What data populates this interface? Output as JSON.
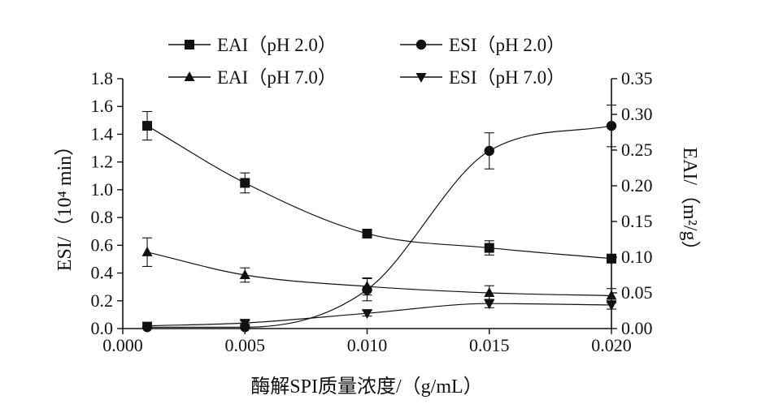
{
  "chart_data": {
    "type": "line",
    "x_label": "酶解SPI质量浓度/（g/mL）",
    "y_left_label": "ESI/（10⁴ min）",
    "y_right_label": "EAI/（m²/g）",
    "x_range": [
      0.0,
      0.02
    ],
    "y_left_range": [
      0.0,
      1.8
    ],
    "y_right_range": [
      0.0,
      0.35
    ],
    "x_ticks": [
      "0.000",
      "0.005",
      "0.010",
      "0.015",
      "0.020"
    ],
    "y_left_ticks": [
      "0.0",
      "0.2",
      "0.4",
      "0.6",
      "0.8",
      "1.0",
      "1.2",
      "1.4",
      "1.6",
      "1.8"
    ],
    "y_right_ticks": [
      "0.00",
      "0.05",
      "0.10",
      "0.15",
      "0.20",
      "0.25",
      "0.30",
      "0.35"
    ],
    "legend_position": "top",
    "series": [
      {
        "name": "EAI（pH 2.0）",
        "axis": "right",
        "marker": "square",
        "x": [
          0.001,
          0.005,
          0.01,
          0.015,
          0.02
        ],
        "y": [
          0.284,
          0.204,
          0.133,
          0.113,
          0.098
        ],
        "err": [
          0.02,
          0.014,
          0.004,
          0.01,
          0.006
        ]
      },
      {
        "name": "ESI（pH 2.0）",
        "axis": "left",
        "marker": "circle",
        "x": [
          0.001,
          0.005,
          0.01,
          0.015,
          0.02
        ],
        "y": [
          0.01,
          0.01,
          0.28,
          1.28,
          1.46
        ],
        "err": [
          0.02,
          0.02,
          0.08,
          0.13,
          0.15
        ]
      },
      {
        "name": "EAI（pH 7.0）",
        "axis": "right",
        "marker": "triangle-up",
        "x": [
          0.001,
          0.005,
          0.01,
          0.015,
          0.02
        ],
        "y": [
          0.107,
          0.075,
          0.059,
          0.05,
          0.046
        ],
        "err": [
          0.02,
          0.01,
          0.012,
          0.01,
          0.01
        ]
      },
      {
        "name": "ESI（pH 7.0）",
        "axis": "left",
        "marker": "triangle-down",
        "x": [
          0.001,
          0.005,
          0.01,
          0.015,
          0.02
        ],
        "y": [
          0.02,
          0.04,
          0.11,
          0.18,
          0.17
        ],
        "err": [
          0.015,
          0.015,
          0.02,
          0.03,
          0.03
        ]
      }
    ]
  }
}
